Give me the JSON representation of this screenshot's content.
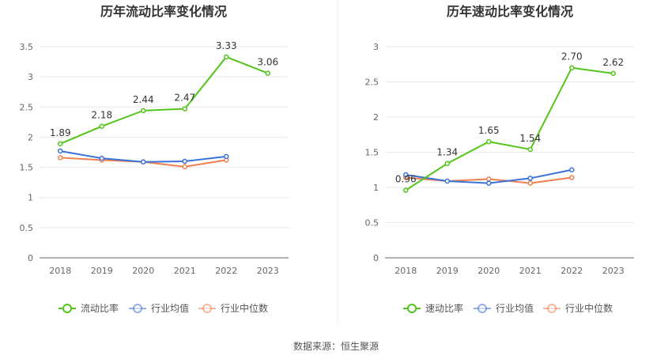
{
  "source_text": "数据来源：恒生聚源",
  "colors": {
    "main": "#52c41a",
    "avg": "#3a72d8",
    "median": "#f08050",
    "grid": "#e8e8e8",
    "axis": "#666666"
  },
  "chart_data": [
    {
      "type": "line",
      "title": "历年流动比率变化情况",
      "categories": [
        "2018",
        "2019",
        "2020",
        "2021",
        "2022",
        "2023"
      ],
      "ylim": [
        0,
        3.5
      ],
      "yticks": [
        "0",
        "0.5",
        "1",
        "1.5",
        "2",
        "2.5",
        "3",
        "3.5"
      ],
      "legend_position": "bottom",
      "series": [
        {
          "name": "流动比率",
          "color": "#52c41a",
          "values": [
            1.89,
            2.18,
            2.44,
            2.47,
            3.33,
            3.06
          ],
          "labels": [
            "1.89",
            "2.18",
            "2.44",
            "2.47",
            "3.33",
            "3.06"
          ]
        },
        {
          "name": "行业均值",
          "color": "#3a72d8",
          "values": [
            1.77,
            1.65,
            1.59,
            1.6,
            1.68,
            null
          ]
        },
        {
          "name": "行业中位数",
          "color": "#f08050",
          "values": [
            1.66,
            1.62,
            1.59,
            1.51,
            1.62,
            null
          ]
        }
      ]
    },
    {
      "type": "line",
      "title": "历年速动比率变化情况",
      "categories": [
        "2018",
        "2019",
        "2020",
        "2021",
        "2022",
        "2023"
      ],
      "ylim": [
        0,
        3
      ],
      "yticks": [
        "0",
        "0.5",
        "1",
        "1.5",
        "2",
        "2.5",
        "3"
      ],
      "legend_position": "bottom",
      "series": [
        {
          "name": "速动比率",
          "color": "#52c41a",
          "values": [
            0.96,
            1.34,
            1.65,
            1.54,
            2.7,
            2.62
          ],
          "labels": [
            "0.96",
            "1.34",
            "1.65",
            "1.54",
            "2.70",
            "2.62"
          ]
        },
        {
          "name": "行业均值",
          "color": "#3a72d8",
          "values": [
            1.18,
            1.09,
            1.06,
            1.13,
            1.25,
            null
          ]
        },
        {
          "name": "行业中位数",
          "color": "#f08050",
          "values": [
            1.14,
            1.09,
            1.12,
            1.06,
            1.14,
            null
          ]
        }
      ]
    }
  ]
}
